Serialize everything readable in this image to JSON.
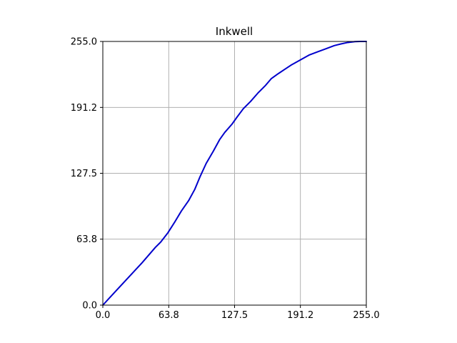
{
  "chart_data": {
    "type": "line",
    "title": "Inkwell",
    "xlabel": "",
    "ylabel": "",
    "xlim": [
      0,
      255
    ],
    "ylim": [
      0,
      255
    ],
    "grid": true,
    "x_ticks": [
      "0.0",
      "63.8",
      "127.5",
      "191.2",
      "255.0"
    ],
    "y_ticks": [
      "0.0",
      "63.8",
      "127.5",
      "191.2",
      "255.0"
    ],
    "series": [
      {
        "name": "",
        "color": "#0000cc",
        "x": [
          0,
          12,
          25,
          38,
          51,
          56,
          63,
          70,
          76,
          83,
          89,
          94,
          100,
          107,
          113,
          118,
          125,
          130,
          136,
          143,
          150,
          157,
          163,
          170,
          176,
          182,
          191,
          200,
          208,
          216,
          224,
          230,
          237,
          244,
          249,
          255
        ],
        "y": [
          0,
          13,
          27,
          41,
          56,
          61,
          70,
          81,
          91,
          101,
          112,
          124,
          137,
          149,
          160,
          167,
          175,
          182,
          190,
          197,
          205,
          212,
          219,
          224,
          228,
          232,
          237,
          242,
          245,
          248,
          251,
          252.5,
          254,
          254.8,
          255,
          255
        ]
      }
    ]
  }
}
